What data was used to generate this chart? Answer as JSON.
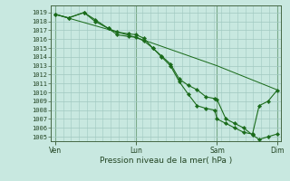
{
  "bg_color": "#c8e8e0",
  "grid_color": "#a0c8c0",
  "line_color": "#1a6b1a",
  "marker_color": "#1a6b1a",
  "ylabel_ticks": [
    1005,
    1006,
    1007,
    1008,
    1009,
    1010,
    1011,
    1012,
    1013,
    1014,
    1015,
    1016,
    1017,
    1018,
    1019
  ],
  "ylim": [
    1004.5,
    1019.8
  ],
  "xlabel": "Pression niveau de la mer( hPa )",
  "xtick_labels": [
    "Ven",
    "Lun",
    "Sam",
    "Dim"
  ],
  "xtick_positions": [
    0.0,
    0.365,
    0.73,
    1.0
  ],
  "series1_x": [
    0.0,
    0.06,
    0.13,
    0.18,
    0.24,
    0.28,
    0.33,
    0.365,
    0.4,
    0.44,
    0.48,
    0.52,
    0.56,
    0.6,
    0.64,
    0.68,
    0.72,
    0.73,
    0.77,
    0.81,
    0.85,
    0.89,
    0.92,
    0.96,
    1.0
  ],
  "series1_y": [
    1018.8,
    1018.4,
    1019.0,
    1018.2,
    1017.2,
    1016.8,
    1016.6,
    1016.5,
    1016.1,
    1015.0,
    1014.1,
    1013.2,
    1011.5,
    1010.8,
    1010.3,
    1009.5,
    1009.3,
    1009.2,
    1007.0,
    1006.5,
    1006.0,
    1005.2,
    1004.7,
    1005.0,
    1005.3
  ],
  "series2_x": [
    0.0,
    0.06,
    0.13,
    0.18,
    0.24,
    0.28,
    0.33,
    0.365,
    0.4,
    0.44,
    0.48,
    0.52,
    0.56,
    0.6,
    0.64,
    0.68,
    0.72,
    0.73,
    0.77,
    0.81,
    0.85,
    0.89,
    0.92,
    0.96,
    1.0
  ],
  "series2_y": [
    1018.8,
    1018.4,
    1019.0,
    1018.0,
    1017.2,
    1016.5,
    1016.3,
    1016.2,
    1015.8,
    1015.0,
    1014.0,
    1013.0,
    1011.2,
    1009.8,
    1008.5,
    1008.2,
    1008.0,
    1007.0,
    1006.5,
    1006.0,
    1005.5,
    1005.3,
    1008.5,
    1009.0,
    1010.2
  ],
  "series3_x": [
    0.0,
    0.365,
    0.73,
    1.0
  ],
  "series3_y": [
    1018.8,
    1016.2,
    1013.0,
    1010.3
  ]
}
